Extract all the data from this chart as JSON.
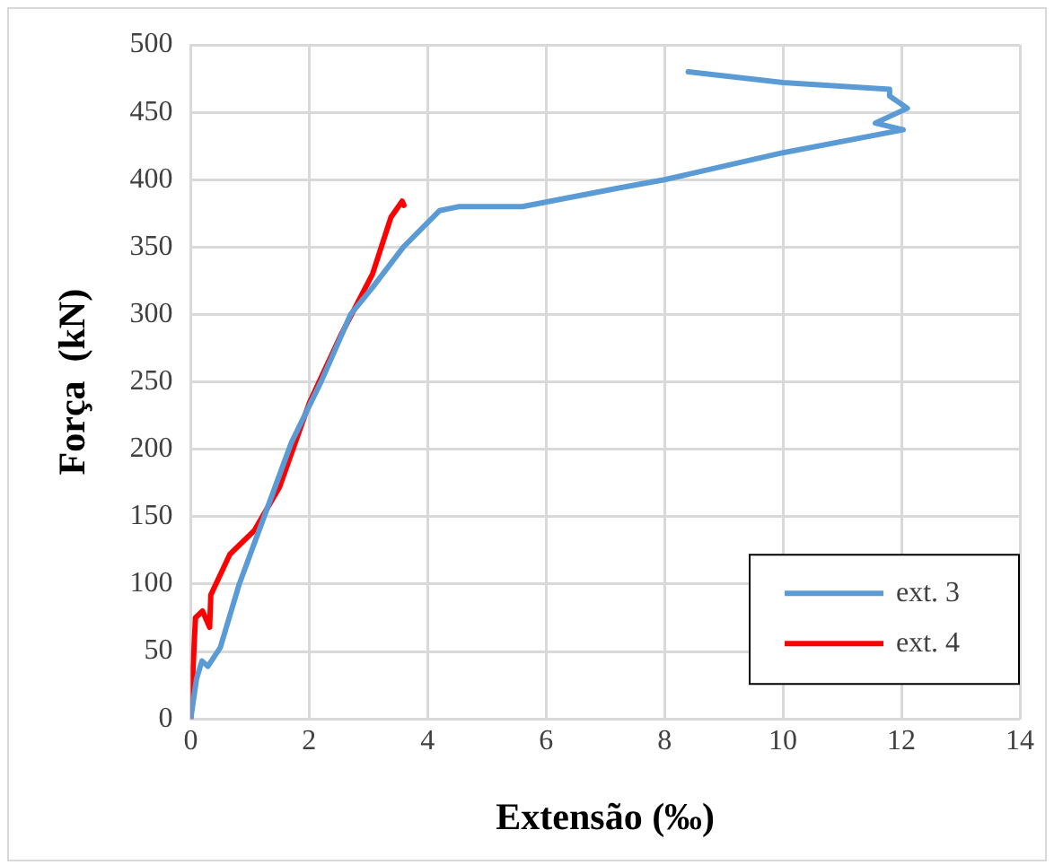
{
  "chart_data": {
    "type": "line",
    "xlabel": "Extensão (‰)",
    "ylabel": "Força  (kN)",
    "xlim": [
      0,
      14
    ],
    "xticks": [
      0,
      2,
      4,
      6,
      8,
      10,
      12,
      14
    ],
    "ylim": [
      0,
      500
    ],
    "yticks": [
      0,
      50,
      100,
      150,
      200,
      250,
      300,
      350,
      400,
      450,
      500
    ],
    "grid": true,
    "legend": "bottom right",
    "marker": "none",
    "line_style": "solid",
    "series": [
      {
        "name": "ext. 3",
        "color": "#5b9bd5",
        "x": [
          0,
          0.1,
          0.19,
          0.29,
          0.5,
          0.82,
          1.24,
          1.7,
          2.2,
          2.7,
          3.07,
          3.59,
          4.2,
          4.53,
          5.6,
          7.25,
          8,
          10,
          12.03,
          11.56,
          12.1,
          11.8,
          11.8,
          10,
          8.4
        ],
        "values": [
          0,
          30,
          43,
          39,
          53,
          100,
          150,
          205,
          250,
          300,
          320,
          350,
          377,
          380,
          380,
          394,
          400,
          420,
          437,
          442,
          453,
          462,
          467,
          472,
          480
        ]
      },
      {
        "name": "ext. 4",
        "color": "#ff0000",
        "x": [
          0,
          0.08,
          0.2,
          0.32,
          0.34,
          0.66,
          1.08,
          1.5,
          2.0,
          2.55,
          3.07,
          3.38,
          3.57,
          3.6
        ],
        "values": [
          0,
          75,
          80,
          68,
          92,
          122,
          140,
          172,
          234,
          286,
          330,
          372,
          384,
          381
        ]
      }
    ]
  }
}
